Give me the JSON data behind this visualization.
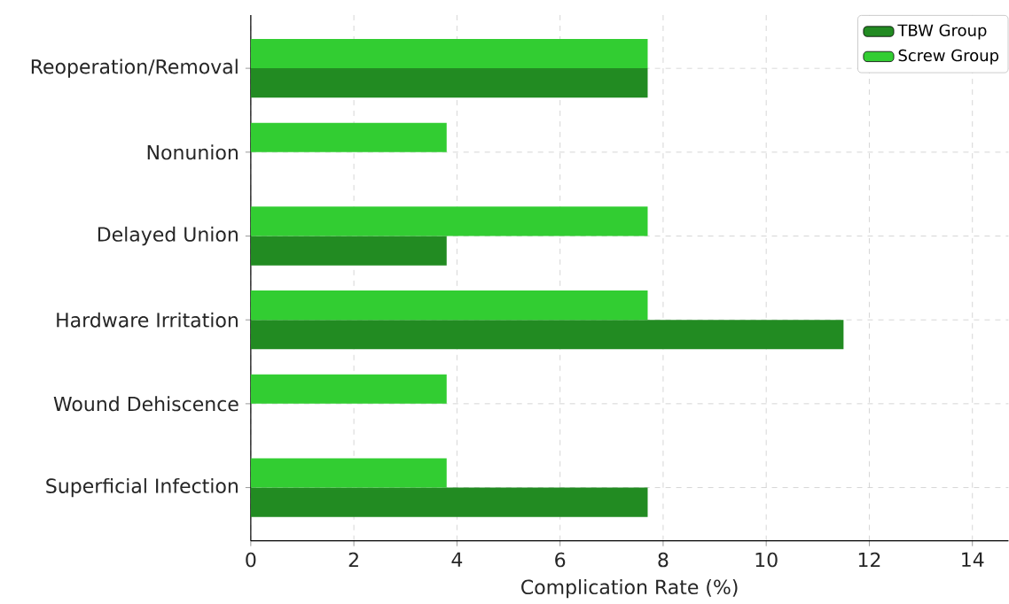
{
  "chart_data": {
    "type": "bar",
    "orientation": "horizontal",
    "xlabel": "Complication Rate (%)",
    "categories": [
      "Reoperation/Removal",
      "Nonunion",
      "Delayed Union",
      "Hardware Irritation",
      "Wound Dehiscence",
      "Superficial Infection"
    ],
    "series": [
      {
        "name": "TBW Group",
        "color": "#228b22",
        "values": [
          7.7,
          0,
          3.8,
          11.5,
          0,
          7.7
        ]
      },
      {
        "name": "Screw Group",
        "color": "#32cd32",
        "values": [
          7.7,
          3.8,
          7.7,
          7.7,
          3.8,
          3.8
        ]
      }
    ],
    "xlim": [
      0,
      14.7
    ],
    "xticks": [
      0,
      2,
      4,
      6,
      8,
      10,
      12,
      14
    ],
    "grid": true,
    "legend": "top right",
    "line_style": "dashed"
  }
}
